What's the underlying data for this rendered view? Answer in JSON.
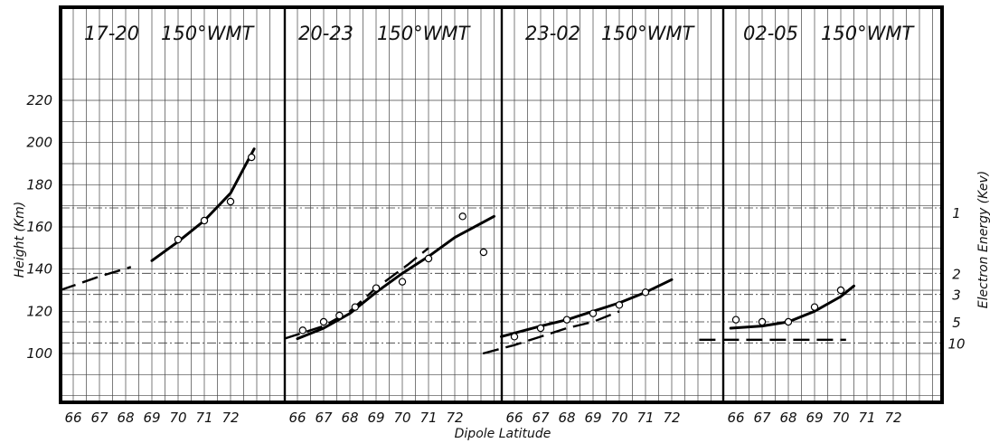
{
  "chart_data": {
    "type": "scatter",
    "ylabel": "Height (Km)",
    "xlabel": "Dipole Latitude",
    "right_axis_label": "Electron Energy (Kev)",
    "ylim": [
      80,
      235
    ],
    "y_ticks": [
      100,
      120,
      140,
      160,
      180,
      200,
      220
    ],
    "y_tick_labels": [
      "100",
      "120",
      "140",
      "160",
      "180",
      "200",
      "220"
    ],
    "energy_ticks": [
      {
        "label": "1",
        "height": 169
      },
      {
        "label": "2",
        "height": 138
      },
      {
        "label": "3",
        "height": 128
      },
      {
        "label": "5",
        "height": 115
      },
      {
        "label": "10",
        "height": 105
      }
    ],
    "panels": [
      {
        "title_time": "17-20",
        "title_lon": "150°WMT",
        "xlim": [
          65.5,
          73.8
        ],
        "x_tick_labels": [
          "66",
          "67",
          "68",
          "69",
          "70",
          "71",
          "72"
        ],
        "mean_points": [
          [
            70,
            154
          ],
          [
            71,
            163
          ],
          [
            72,
            172
          ],
          [
            72.8,
            193
          ]
        ],
        "fit_curve": [
          [
            69,
            144
          ],
          [
            70,
            153
          ],
          [
            71,
            163
          ],
          [
            72,
            176
          ],
          [
            72.9,
            197
          ]
        ],
        "dashed_curve": [
          [
            65.5,
            130
          ],
          [
            67,
            136.5
          ],
          [
            68.2,
            141
          ]
        ]
      },
      {
        "title_time": "20-23",
        "title_lon": "150°WMT",
        "xlim": [
          65.5,
          73.8
        ],
        "x_tick_labels": [
          "66",
          "67",
          "68",
          "69",
          "70",
          "71",
          "72"
        ],
        "mean_points": [
          [
            66.2,
            111
          ],
          [
            67,
            115
          ],
          [
            67.6,
            118
          ],
          [
            68.2,
            122
          ],
          [
            69,
            131
          ],
          [
            70,
            134
          ],
          [
            71,
            145
          ],
          [
            72.3,
            165
          ],
          [
            73.1,
            148
          ]
        ],
        "fit_curve": [
          [
            66,
            107
          ],
          [
            67,
            112
          ],
          [
            68,
            119
          ],
          [
            69,
            129
          ],
          [
            70,
            138
          ],
          [
            71,
            146
          ],
          [
            72,
            155
          ],
          [
            73.5,
            165
          ]
        ],
        "dashed_curve": [
          [
            65.5,
            107
          ],
          [
            67,
            113
          ],
          [
            68,
            120
          ],
          [
            69,
            131
          ],
          [
            70.2,
            142
          ],
          [
            71,
            150
          ]
        ]
      },
      {
        "title_time": "23-02",
        "title_lon": "150°WMT",
        "xlim": [
          65.5,
          73.8
        ],
        "x_tick_labels": [
          "66",
          "67",
          "68",
          "69",
          "70",
          "71",
          "72"
        ],
        "mean_points": [
          [
            66,
            108
          ],
          [
            67,
            112
          ],
          [
            68,
            116
          ],
          [
            69,
            119
          ],
          [
            70,
            123
          ],
          [
            71,
            129
          ]
        ],
        "fit_curve": [
          [
            65.5,
            108
          ],
          [
            67,
            113
          ],
          [
            68,
            116
          ],
          [
            69,
            120
          ],
          [
            70,
            124
          ],
          [
            71,
            129
          ],
          [
            72,
            135
          ]
        ],
        "dashed_curve": [
          [
            64.8,
            100
          ],
          [
            66,
            104
          ],
          [
            67,
            108
          ],
          [
            68,
            112
          ],
          [
            69,
            115
          ],
          [
            70,
            120
          ]
        ]
      },
      {
        "title_time": "02-05",
        "title_lon": "150°WMT",
        "xlim": [
          65.5,
          73.8
        ],
        "x_tick_labels": [
          "66",
          "67",
          "68",
          "69",
          "70",
          "71",
          "72"
        ],
        "mean_points": [
          [
            66,
            116
          ],
          [
            67,
            115
          ],
          [
            68,
            115
          ],
          [
            69,
            122
          ],
          [
            70,
            130
          ]
        ],
        "fit_curve": [
          [
            65.8,
            112
          ],
          [
            67,
            113
          ],
          [
            68,
            115
          ],
          [
            69,
            120
          ],
          [
            70,
            127
          ],
          [
            70.5,
            132
          ]
        ],
        "dashed_curve": [
          [
            64.6,
            106.5
          ],
          [
            70.2,
            106.5
          ]
        ]
      }
    ]
  }
}
